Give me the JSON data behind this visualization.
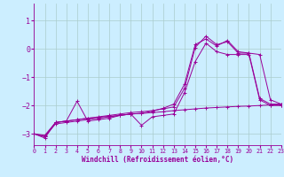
{
  "xlabel": "Windchill (Refroidissement éolien,°C)",
  "bg_color": "#cceeff",
  "line_color": "#990099",
  "grid_color": "#aacccc",
  "xlim": [
    0,
    23
  ],
  "ylim": [
    -3.4,
    1.6
  ],
  "xticks": [
    0,
    1,
    2,
    3,
    4,
    5,
    6,
    7,
    8,
    9,
    10,
    11,
    12,
    13,
    14,
    15,
    16,
    17,
    18,
    19,
    20,
    21,
    22,
    23
  ],
  "yticks": [
    -3,
    -2,
    -1,
    0,
    1
  ],
  "line1_x": [
    0,
    1,
    2,
    3,
    4,
    5,
    6,
    7,
    8,
    9,
    10,
    11,
    12,
    13,
    14,
    15,
    16,
    17,
    18,
    19,
    20,
    21,
    22,
    23
  ],
  "line1_y": [
    -3.0,
    -3.05,
    -2.6,
    -2.55,
    -2.5,
    -2.45,
    -2.42,
    -2.38,
    -2.35,
    -2.3,
    -2.28,
    -2.25,
    -2.22,
    -2.18,
    -2.15,
    -2.12,
    -2.09,
    -2.07,
    -2.05,
    -2.03,
    -2.02,
    -2.0,
    -1.98,
    -1.98
  ],
  "line2_x": [
    0,
    1,
    2,
    3,
    4,
    5,
    6,
    7,
    8,
    9,
    10,
    11,
    12,
    13,
    14,
    15,
    16,
    17,
    18,
    19,
    20,
    21,
    22,
    23
  ],
  "line2_y": [
    -3.0,
    -3.1,
    -2.6,
    -2.55,
    -1.85,
    -2.55,
    -2.5,
    -2.45,
    -2.35,
    -2.3,
    -2.7,
    -2.4,
    -2.35,
    -2.3,
    -1.55,
    -0.45,
    0.2,
    -0.1,
    -0.2,
    -0.2,
    -0.2,
    -1.8,
    -2.0,
    -2.0
  ],
  "line3_x": [
    0,
    1,
    2,
    3,
    4,
    5,
    6,
    7,
    8,
    9,
    10,
    11,
    12,
    13,
    14,
    15,
    16,
    17,
    18,
    19,
    20,
    21,
    22,
    23
  ],
  "line3_y": [
    -3.0,
    -3.1,
    -2.65,
    -2.6,
    -2.55,
    -2.5,
    -2.45,
    -2.4,
    -2.35,
    -2.3,
    -2.28,
    -2.2,
    -2.1,
    -1.95,
    -1.25,
    0.15,
    0.35,
    0.1,
    0.3,
    -0.1,
    -0.15,
    -0.2,
    -1.8,
    -1.95
  ],
  "line4_x": [
    0,
    1,
    2,
    3,
    4,
    5,
    6,
    7,
    8,
    9,
    10,
    11,
    12,
    13,
    14,
    15,
    16,
    17,
    18,
    19,
    20,
    21,
    22,
    23
  ],
  "line4_y": [
    -3.0,
    -3.15,
    -2.6,
    -2.55,
    -2.5,
    -2.45,
    -2.4,
    -2.35,
    -2.3,
    -2.25,
    -2.22,
    -2.18,
    -2.12,
    -2.05,
    -1.4,
    0.05,
    0.45,
    0.15,
    0.25,
    -0.15,
    -0.15,
    -1.75,
    -1.95,
    -1.95
  ]
}
